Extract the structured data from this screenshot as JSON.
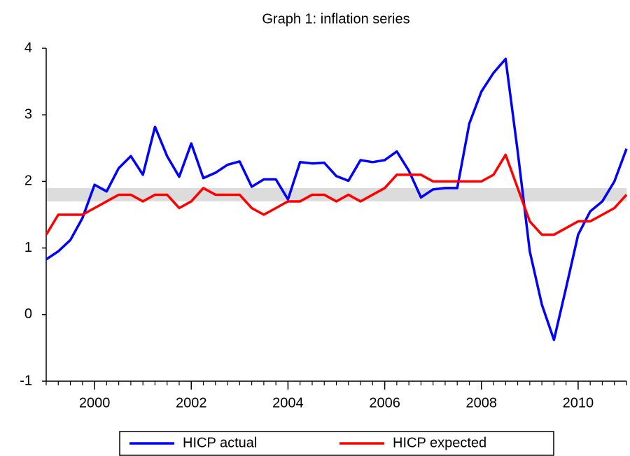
{
  "chart_data": {
    "type": "line",
    "title": "Graph 1: inflation series",
    "x": [
      1999,
      1999.25,
      1999.5,
      1999.75,
      2000,
      2000.25,
      2000.5,
      2000.75,
      2001,
      2001.25,
      2001.5,
      2001.75,
      2002,
      2002.25,
      2002.5,
      2002.75,
      2003,
      2003.25,
      2003.5,
      2003.75,
      2004,
      2004.25,
      2004.5,
      2004.75,
      2005,
      2005.25,
      2005.5,
      2005.75,
      2006,
      2006.25,
      2006.5,
      2006.75,
      2007,
      2007.25,
      2007.5,
      2007.75,
      2008,
      2008.25,
      2008.5,
      2008.75,
      2009,
      2009.25,
      2009.5,
      2009.75,
      2010,
      2010.25,
      2010.5,
      2010.75,
      2011
    ],
    "series": [
      {
        "name": "HICP actual",
        "color": "#0000ff",
        "values": [
          0.83,
          0.95,
          1.12,
          1.45,
          1.95,
          1.85,
          2.2,
          2.38,
          2.1,
          2.82,
          2.38,
          2.07,
          2.57,
          2.05,
          2.13,
          2.25,
          2.3,
          1.92,
          2.03,
          2.03,
          1.73,
          2.29,
          2.27,
          2.28,
          2.08,
          2.01,
          2.32,
          2.29,
          2.32,
          2.45,
          2.16,
          1.76,
          1.88,
          1.9,
          1.9,
          2.87,
          3.35,
          3.63,
          3.84,
          2.45,
          0.95,
          0.15,
          -0.38,
          0.4,
          1.2,
          1.55,
          1.7,
          2.0,
          2.49
        ]
      },
      {
        "name": "HICP expected",
        "color": "#ff0000",
        "values": [
          1.2,
          1.5,
          1.5,
          1.5,
          1.6,
          1.7,
          1.8,
          1.8,
          1.7,
          1.8,
          1.8,
          1.6,
          1.7,
          1.9,
          1.8,
          1.8,
          1.8,
          1.6,
          1.5,
          1.6,
          1.7,
          1.7,
          1.8,
          1.8,
          1.7,
          1.8,
          1.7,
          1.8,
          1.9,
          2.1,
          2.1,
          2.1,
          2.0,
          2.0,
          2.0,
          2.0,
          2.0,
          2.1,
          2.4,
          1.9,
          1.4,
          1.2,
          1.2,
          1.3,
          1.4,
          1.4,
          1.5,
          1.6,
          1.8
        ]
      }
    ],
    "shade": [
      1.7,
      1.9
    ],
    "shade_color": "#dcdcdc",
    "xlim": [
      1999,
      2011
    ],
    "xticks": [
      2000,
      2002,
      2004,
      2006,
      2008,
      2010
    ],
    "ylim": [
      -1,
      4
    ],
    "yticks": [
      -1,
      0,
      1,
      2,
      3,
      4
    ],
    "legend": "bottom"
  }
}
